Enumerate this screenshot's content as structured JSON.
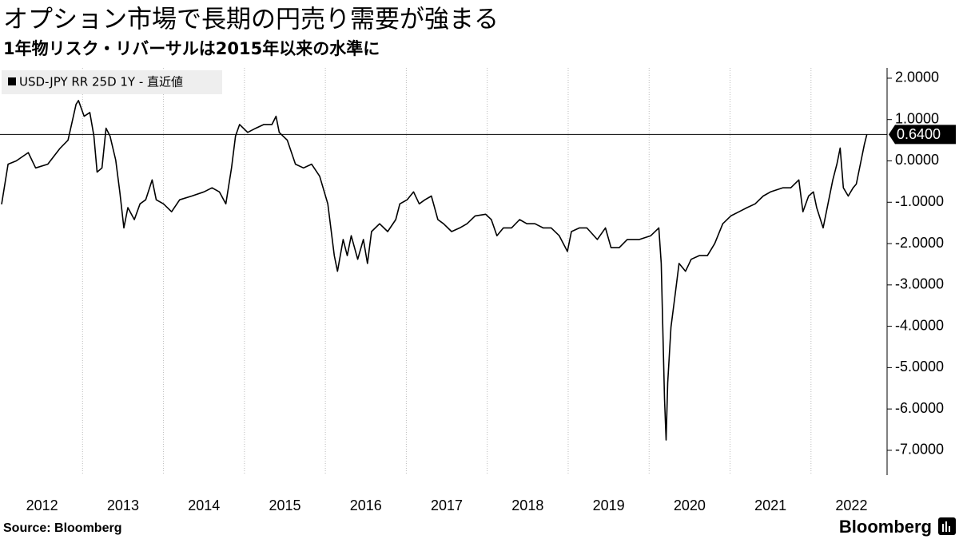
{
  "chart_data": {
    "type": "line",
    "title": "オプション市場で長期の円売り需要が強まる",
    "subtitle": "1年物リスク・リバーサルは2015年以来の水準に",
    "source": "Source:  Bloomberg",
    "brand": "Bloomberg",
    "x": [
      2012.0,
      2012.08,
      2012.18,
      2012.33,
      2012.42,
      2012.57,
      2012.72,
      2012.82,
      2012.92,
      2012.95,
      2013.02,
      2013.09,
      2013.14,
      2013.18,
      2013.24,
      2013.29,
      2013.34,
      2013.41,
      2013.46,
      2013.51,
      2013.56,
      2013.64,
      2013.71,
      2013.78,
      2013.86,
      2013.91,
      2014.0,
      2014.1,
      2014.2,
      2014.35,
      2014.5,
      2014.6,
      2014.69,
      2014.77,
      2014.84,
      2014.89,
      2014.94,
      2015.04,
      2015.14,
      2015.24,
      2015.34,
      2015.39,
      2015.43,
      2015.53,
      2015.63,
      2015.73,
      2015.83,
      2015.93,
      2016.03,
      2016.11,
      2016.15,
      2016.22,
      2016.27,
      2016.32,
      2016.4,
      2016.47,
      2016.52,
      2016.57,
      2016.67,
      2016.77,
      2016.87,
      2016.92,
      2017.01,
      2017.09,
      2017.16,
      2017.23,
      2017.31,
      2017.39,
      2017.46,
      2017.56,
      2017.66,
      2017.75,
      2017.85,
      2017.98,
      2018.05,
      2018.12,
      2018.2,
      2018.3,
      2018.4,
      2018.49,
      2018.59,
      2018.69,
      2018.79,
      2018.89,
      2018.99,
      2019.04,
      2019.14,
      2019.23,
      2019.36,
      2019.46,
      2019.53,
      2019.63,
      2019.73,
      2019.88,
      2020.02,
      2020.12,
      2020.15,
      2020.19,
      2020.21,
      2020.23,
      2020.27,
      2020.32,
      2020.37,
      2020.45,
      2020.52,
      2020.62,
      2020.72,
      2020.81,
      2020.91,
      2021.01,
      2021.11,
      2021.21,
      2021.31,
      2021.41,
      2021.5,
      2021.65,
      2021.75,
      2021.85,
      2021.9,
      2021.97,
      2022.03,
      2022.07,
      2022.15,
      2022.2,
      2022.27,
      2022.32,
      2022.36,
      2022.4,
      2022.46,
      2022.52,
      2022.56,
      2022.62,
      2022.66,
      2022.69
    ],
    "series": [
      {
        "name": "USD-JPY RR 25D 1Y - 直近値",
        "color": "#000000",
        "values": [
          -1.05,
          -0.08,
          0.0,
          0.2,
          -0.17,
          -0.08,
          0.3,
          0.5,
          1.37,
          1.46,
          1.08,
          1.17,
          0.6,
          -0.27,
          -0.17,
          0.79,
          0.6,
          0.02,
          -0.75,
          -1.62,
          -1.13,
          -1.42,
          -1.04,
          -0.94,
          -0.46,
          -0.94,
          -1.04,
          -1.23,
          -0.94,
          -0.85,
          -0.75,
          -0.65,
          -0.75,
          -1.04,
          -0.17,
          0.6,
          0.88,
          0.69,
          0.79,
          0.88,
          0.88,
          1.08,
          0.69,
          0.5,
          -0.08,
          -0.17,
          -0.08,
          -0.37,
          -1.04,
          -2.29,
          -2.67,
          -1.9,
          -2.29,
          -1.81,
          -2.38,
          -1.9,
          -2.48,
          -1.71,
          -1.52,
          -1.71,
          -1.42,
          -1.04,
          -0.94,
          -0.75,
          -1.04,
          -0.94,
          -0.85,
          -1.42,
          -1.52,
          -1.71,
          -1.62,
          -1.52,
          -1.33,
          -1.29,
          -1.42,
          -1.81,
          -1.62,
          -1.62,
          -1.42,
          -1.52,
          -1.52,
          -1.62,
          -1.62,
          -1.81,
          -2.19,
          -1.71,
          -1.62,
          -1.62,
          -1.9,
          -1.62,
          -2.1,
          -2.1,
          -1.9,
          -1.9,
          -1.81,
          -1.62,
          -2.48,
          -5.75,
          -6.75,
          -5.37,
          -4.02,
          -3.25,
          -2.48,
          -2.67,
          -2.38,
          -2.29,
          -2.29,
          -2.0,
          -1.52,
          -1.33,
          -1.23,
          -1.13,
          -1.04,
          -0.85,
          -0.75,
          -0.65,
          -0.65,
          -0.46,
          -1.23,
          -0.85,
          -0.75,
          -1.13,
          -1.62,
          -1.13,
          -0.46,
          -0.08,
          0.31,
          -0.65,
          -0.85,
          -0.65,
          -0.56,
          0.02,
          0.4,
          0.64
        ]
      }
    ],
    "reference_line": {
      "value": 0.64,
      "label": "0.6400"
    },
    "xlim": [
      2011.98,
      2022.94
    ],
    "xticks": [
      {
        "value": 2012.5,
        "label": "2012"
      },
      {
        "value": 2013.5,
        "label": "2013"
      },
      {
        "value": 2014.5,
        "label": "2014"
      },
      {
        "value": 2015.5,
        "label": "2015"
      },
      {
        "value": 2016.5,
        "label": "2016"
      },
      {
        "value": 2017.5,
        "label": "2017"
      },
      {
        "value": 2018.5,
        "label": "2018"
      },
      {
        "value": 2019.5,
        "label": "2019"
      },
      {
        "value": 2020.5,
        "label": "2020"
      },
      {
        "value": 2021.5,
        "label": "2021"
      },
      {
        "value": 2022.5,
        "label": "2022"
      }
    ],
    "xgrid": [
      2013,
      2014,
      2015,
      2016,
      2017,
      2018,
      2019,
      2020,
      2021,
      2022
    ],
    "ylim": [
      -7.6,
      2.25
    ],
    "yticks": [
      {
        "value": 2,
        "label": "2.0000"
      },
      {
        "value": 1,
        "label": "1.0000"
      },
      {
        "value": 0,
        "label": "0.0000"
      },
      {
        "value": -1,
        "label": "-1.0000"
      },
      {
        "value": -2,
        "label": "-2.0000"
      },
      {
        "value": -3,
        "label": "-3.0000"
      },
      {
        "value": -4,
        "label": "-4.0000"
      },
      {
        "value": -5,
        "label": "-5.0000"
      },
      {
        "value": -6,
        "label": "-6.0000"
      },
      {
        "value": -7,
        "label": "-7.0000"
      }
    ],
    "legend": "top-left"
  }
}
